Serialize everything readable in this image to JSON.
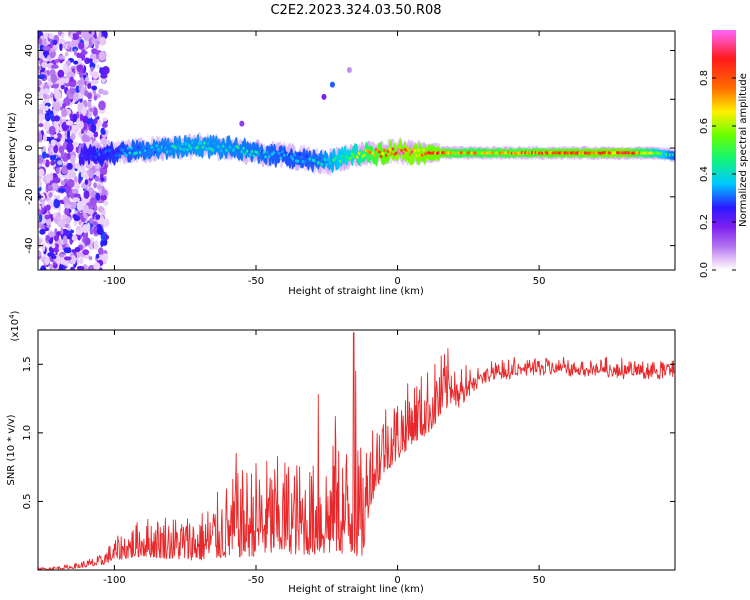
{
  "figure_title": "C2E2.2023.324.03.50.R08",
  "chart_data": [
    {
      "type": "heatmap",
      "title": "",
      "xlabel": "Height of straight line (km)",
      "ylabel": "Frequency (Hz)",
      "xlim": [
        -127,
        98
      ],
      "ylim": [
        -50,
        48
      ],
      "xticks": [
        -100,
        -50,
        0,
        50
      ],
      "xtick_labels": [
        "-100",
        "-50",
        "0",
        "50"
      ],
      "yticks": [
        -40,
        -20,
        0,
        20,
        40
      ],
      "ytick_labels": [
        "-40",
        "-20",
        "0",
        "20",
        "40"
      ],
      "colorbar": {
        "label": "Normalized spectral amplitude",
        "range": [
          0,
          1
        ],
        "ticks": [
          0.0,
          0.2,
          0.4,
          0.6,
          0.8
        ],
        "tick_labels": [
          "0.0",
          "0.2",
          "0.4",
          "0.6",
          "0.8"
        ],
        "colors": [
          "#ffffff",
          "#e6c8f8",
          "#b070ef",
          "#7e1ff0",
          "#2a19ff",
          "#00c8ff",
          "#11f57a",
          "#66ff00",
          "#ffee00",
          "#ff6a00",
          "#ff1a1a",
          "#ff66ff"
        ]
      },
      "ridge": {
        "x": [
          -112,
          -100,
          -90,
          -80,
          -70,
          -60,
          -50,
          -40,
          -30,
          -25,
          -20,
          -15,
          -10,
          -5,
          0,
          5,
          10,
          15,
          20,
          30,
          40,
          50,
          60,
          70,
          80,
          90,
          98
        ],
        "freq": [
          -3,
          -2,
          -1,
          0,
          1,
          0,
          -2,
          -3,
          -5,
          -6,
          -4,
          -3,
          -2,
          -2,
          -1,
          -2,
          -2,
          -2,
          -2,
          -2,
          -2,
          -2,
          -2,
          -2,
          -2,
          -2,
          -3
        ],
        "amplitude": [
          0.25,
          0.32,
          0.38,
          0.4,
          0.42,
          0.4,
          0.38,
          0.35,
          0.36,
          0.42,
          0.48,
          0.55,
          0.7,
          0.82,
          0.88,
          0.86,
          0.85,
          0.84,
          0.72,
          0.72,
          0.75,
          0.78,
          0.8,
          0.82,
          0.85,
          0.6,
          0.35
        ]
      },
      "noise_region_x": [
        -127,
        -107
      ],
      "isolated_spots": [
        {
          "x": -23,
          "freq": 26,
          "amplitude": 0.3
        },
        {
          "x": -26,
          "freq": 21,
          "amplitude": 0.18
        },
        {
          "x": -17,
          "freq": 32,
          "amplitude": 0.08
        },
        {
          "x": -55,
          "freq": 10,
          "amplitude": 0.15
        }
      ]
    },
    {
      "type": "line",
      "title": "",
      "xlabel": "Height of straight line (km)",
      "ylabel": "SNR (10 * v/v)",
      "y_multiplier": "(x10",
      "y_multiplier_exp": "4",
      "y_multiplier_close": ")",
      "xlim": [
        -127,
        98
      ],
      "ylim": [
        0,
        1.75
      ],
      "xticks": [
        -100,
        -50,
        0,
        50
      ],
      "xtick_labels": [
        "-100",
        "-50",
        "0",
        "50"
      ],
      "yticks": [
        0.5,
        1.0,
        1.5
      ],
      "ytick_labels": [
        "0.5",
        "1.0",
        "1.5"
      ],
      "color": "#e8282a",
      "envelope": {
        "x": [
          -127,
          -115,
          -105,
          -100,
          -90,
          -80,
          -70,
          -60,
          -50,
          -40,
          -30,
          -20,
          -15,
          -12,
          -10,
          -5,
          0,
          5,
          10,
          15,
          20,
          25,
          30,
          40,
          50,
          60,
          70,
          80,
          90,
          98
        ],
        "base": [
          0.0,
          0.01,
          0.03,
          0.07,
          0.1,
          0.08,
          0.07,
          0.09,
          0.1,
          0.12,
          0.11,
          0.12,
          0.1,
          0.1,
          0.45,
          0.7,
          0.8,
          0.92,
          0.98,
          1.1,
          1.25,
          1.35,
          1.42,
          1.45,
          1.47,
          1.47,
          1.46,
          1.45,
          1.45,
          1.45
        ],
        "amp": [
          0.01,
          0.02,
          0.05,
          0.1,
          0.18,
          0.2,
          0.22,
          0.35,
          0.45,
          0.45,
          0.42,
          0.55,
          0.5,
          0.5,
          0.4,
          0.35,
          0.3,
          0.3,
          0.3,
          0.3,
          0.25,
          0.18,
          0.12,
          0.1,
          0.1,
          0.1,
          0.1,
          0.1,
          0.1,
          0.1
        ]
      },
      "peaks": [
        {
          "x": -15.5,
          "y": 1.73
        },
        {
          "x": -14.8,
          "y": 1.45
        },
        {
          "x": -28,
          "y": 1.28
        },
        {
          "x": -22,
          "y": 1.12
        },
        {
          "x": -57,
          "y": 0.85
        },
        {
          "x": -82,
          "y": 0.38
        }
      ]
    }
  ]
}
